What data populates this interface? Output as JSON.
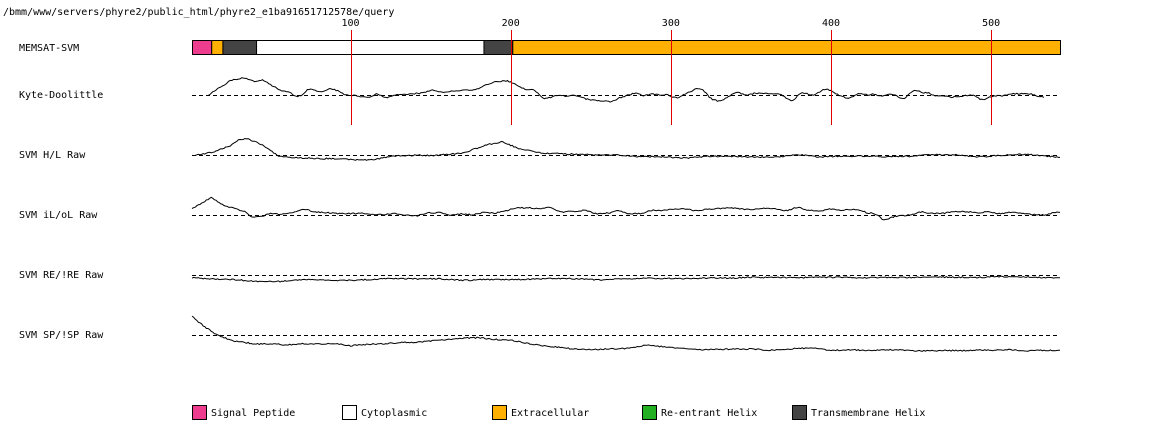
{
  "chart_data": {
    "type": "line",
    "title": "/bmm/www/servers/phyre2/public_html/phyre2_e1ba91651712578e/query",
    "x_range": [
      1,
      543
    ],
    "ruler_ticks": [
      100,
      200,
      300,
      400,
      500
    ],
    "topology": {
      "label": "MEMSAT-SVM",
      "segments": [
        {
          "type": "Signal Peptide",
          "start": 1,
          "end": 13
        },
        {
          "type": "Extracellular",
          "start": 13,
          "end": 20
        },
        {
          "type": "Transmembrane Helix",
          "start": 20,
          "end": 41
        },
        {
          "type": "Cytoplasmic",
          "start": 41,
          "end": 183
        },
        {
          "type": "Transmembrane Helix",
          "start": 183,
          "end": 201
        },
        {
          "type": "Extracellular",
          "start": 201,
          "end": 543
        }
      ]
    },
    "tracks": [
      {
        "name": "Kyte-Doolittle",
        "x_start": 11,
        "x_end": 533,
        "features": [
          {
            "x": 11,
            "y": 0.2
          },
          {
            "x": 20,
            "y": 0.8
          },
          {
            "x": 30,
            "y": 1.4
          },
          {
            "x": 37,
            "y": 1.6
          },
          {
            "x": 45,
            "y": 1.2
          },
          {
            "x": 55,
            "y": 0.5
          },
          {
            "x": 70,
            "y": 0.2
          },
          {
            "x": 80,
            "y": 0.6
          },
          {
            "x": 92,
            "y": 0.3
          },
          {
            "x": 100,
            "y": -0.2
          },
          {
            "x": 112,
            "y": -0.4
          },
          {
            "x": 125,
            "y": 0.1
          },
          {
            "x": 140,
            "y": 0.3
          },
          {
            "x": 160,
            "y": 0.5
          },
          {
            "x": 175,
            "y": 0.5
          },
          {
            "x": 190,
            "y": 1.2
          },
          {
            "x": 198,
            "y": 1.1
          },
          {
            "x": 210,
            "y": 0.2
          },
          {
            "x": 225,
            "y": -0.1
          },
          {
            "x": 240,
            "y": 0.2
          },
          {
            "x": 255,
            "y": -0.5
          },
          {
            "x": 270,
            "y": -0.3
          },
          {
            "x": 285,
            "y": 0.4
          },
          {
            "x": 300,
            "y": -0.3
          },
          {
            "x": 315,
            "y": 0.5
          },
          {
            "x": 330,
            "y": -0.4
          },
          {
            "x": 345,
            "y": 0.3
          },
          {
            "x": 360,
            "y": 0.0
          },
          {
            "x": 375,
            "y": -0.2
          },
          {
            "x": 390,
            "y": 0.1
          },
          {
            "x": 400,
            "y": 0.4
          },
          {
            "x": 415,
            "y": -0.3
          },
          {
            "x": 428,
            "y": 0.3
          },
          {
            "x": 445,
            "y": -0.1
          },
          {
            "x": 460,
            "y": 0.3
          },
          {
            "x": 475,
            "y": -0.2
          },
          {
            "x": 490,
            "y": 0.0
          },
          {
            "x": 500,
            "y": -0.4
          },
          {
            "x": 512,
            "y": 0.2
          },
          {
            "x": 525,
            "y": 0.3
          },
          {
            "x": 533,
            "y": -0.2
          }
        ],
        "amp": 10,
        "noise_amp": 4,
        "wl": 7,
        "seed": 3
      },
      {
        "name": "SVM H/L Raw",
        "x_start": 1,
        "x_end": 543,
        "features": [
          {
            "x": 1,
            "y": 0.0
          },
          {
            "x": 15,
            "y": 0.2
          },
          {
            "x": 25,
            "y": 0.9
          },
          {
            "x": 30,
            "y": 1.5
          },
          {
            "x": 35,
            "y": 1.6
          },
          {
            "x": 45,
            "y": 0.9
          },
          {
            "x": 55,
            "y": 0.0
          },
          {
            "x": 70,
            "y": -0.4
          },
          {
            "x": 90,
            "y": -0.3
          },
          {
            "x": 110,
            "y": -0.4
          },
          {
            "x": 130,
            "y": -0.2
          },
          {
            "x": 150,
            "y": -0.1
          },
          {
            "x": 170,
            "y": 0.2
          },
          {
            "x": 185,
            "y": 1.0
          },
          {
            "x": 195,
            "y": 1.3
          },
          {
            "x": 205,
            "y": 0.6
          },
          {
            "x": 220,
            "y": 0.1
          },
          {
            "x": 240,
            "y": 0.1
          },
          {
            "x": 270,
            "y": -0.1
          },
          {
            "x": 300,
            "y": -0.2
          },
          {
            "x": 340,
            "y": -0.2
          },
          {
            "x": 380,
            "y": -0.1
          },
          {
            "x": 420,
            "y": -0.1
          },
          {
            "x": 460,
            "y": 0.0
          },
          {
            "x": 500,
            "y": -0.1
          },
          {
            "x": 530,
            "y": 0.0
          },
          {
            "x": 543,
            "y": -0.2
          }
        ],
        "amp": 10,
        "noise_amp": 1.2,
        "wl": 14,
        "seed": 7
      },
      {
        "name": "SVM iL/oL Raw",
        "x_start": 1,
        "x_end": 543,
        "features": [
          {
            "x": 1,
            "y": 1.2
          },
          {
            "x": 6,
            "y": 2.0
          },
          {
            "x": 13,
            "y": 3.0
          },
          {
            "x": 20,
            "y": 2.0
          },
          {
            "x": 28,
            "y": 1.0
          },
          {
            "x": 35,
            "y": 0.2
          },
          {
            "x": 38,
            "y": -0.5
          },
          {
            "x": 42,
            "y": -0.1
          },
          {
            "x": 55,
            "y": 0.3
          },
          {
            "x": 70,
            "y": 0.8
          },
          {
            "x": 85,
            "y": 0.5
          },
          {
            "x": 100,
            "y": 0.2
          },
          {
            "x": 120,
            "y": 0.1
          },
          {
            "x": 140,
            "y": 0.1
          },
          {
            "x": 160,
            "y": 0.3
          },
          {
            "x": 180,
            "y": 0.3
          },
          {
            "x": 195,
            "y": 0.8
          },
          {
            "x": 210,
            "y": 1.0
          },
          {
            "x": 225,
            "y": 0.9
          },
          {
            "x": 245,
            "y": 0.6
          },
          {
            "x": 260,
            "y": 0.5
          },
          {
            "x": 280,
            "y": 0.4
          },
          {
            "x": 300,
            "y": 0.7
          },
          {
            "x": 320,
            "y": 1.0
          },
          {
            "x": 340,
            "y": 1.1
          },
          {
            "x": 360,
            "y": 1.0
          },
          {
            "x": 380,
            "y": 1.1
          },
          {
            "x": 400,
            "y": 0.9
          },
          {
            "x": 420,
            "y": 0.8
          },
          {
            "x": 432,
            "y": -0.7
          },
          {
            "x": 440,
            "y": 0.0
          },
          {
            "x": 455,
            "y": 0.5
          },
          {
            "x": 470,
            "y": 0.4
          },
          {
            "x": 490,
            "y": 0.6
          },
          {
            "x": 510,
            "y": 0.4
          },
          {
            "x": 530,
            "y": 0.3
          },
          {
            "x": 543,
            "y": 0.3
          }
        ],
        "amp": 6,
        "noise_amp": 2,
        "wl": 7,
        "seed": 11
      },
      {
        "name": "SVM RE/!RE Raw",
        "x_start": 1,
        "x_end": 543,
        "features": [
          {
            "x": 1,
            "y": -0.6
          },
          {
            "x": 20,
            "y": -1.0
          },
          {
            "x": 40,
            "y": -1.6
          },
          {
            "x": 55,
            "y": -1.5
          },
          {
            "x": 75,
            "y": -1.2
          },
          {
            "x": 95,
            "y": -1.3
          },
          {
            "x": 115,
            "y": -1.0
          },
          {
            "x": 135,
            "y": -0.9
          },
          {
            "x": 155,
            "y": -1.0
          },
          {
            "x": 175,
            "y": -1.3
          },
          {
            "x": 200,
            "y": -1.1
          },
          {
            "x": 230,
            "y": -0.9
          },
          {
            "x": 260,
            "y": -1.1
          },
          {
            "x": 290,
            "y": -0.8
          },
          {
            "x": 320,
            "y": -0.8
          },
          {
            "x": 350,
            "y": -0.6
          },
          {
            "x": 380,
            "y": -0.6
          },
          {
            "x": 410,
            "y": -0.7
          },
          {
            "x": 440,
            "y": -0.7
          },
          {
            "x": 470,
            "y": -0.6
          },
          {
            "x": 500,
            "y": -0.5
          },
          {
            "x": 543,
            "y": -0.6
          }
        ],
        "amp": 4,
        "noise_amp": 0.5,
        "wl": 14,
        "seed": 19
      },
      {
        "name": "SVM SP/!SP Raw",
        "x_start": 1,
        "x_end": 543,
        "features": [
          {
            "x": 1,
            "y": 4.8
          },
          {
            "x": 4,
            "y": 3.6
          },
          {
            "x": 8,
            "y": 2.4
          },
          {
            "x": 15,
            "y": 0.4
          },
          {
            "x": 25,
            "y": -1.3
          },
          {
            "x": 40,
            "y": -2.3
          },
          {
            "x": 60,
            "y": -2.4
          },
          {
            "x": 80,
            "y": -2.1
          },
          {
            "x": 100,
            "y": -2.6
          },
          {
            "x": 120,
            "y": -2.1
          },
          {
            "x": 140,
            "y": -1.8
          },
          {
            "x": 160,
            "y": -1.1
          },
          {
            "x": 180,
            "y": -0.6
          },
          {
            "x": 200,
            "y": -1.3
          },
          {
            "x": 220,
            "y": -2.8
          },
          {
            "x": 240,
            "y": -3.6
          },
          {
            "x": 260,
            "y": -3.6
          },
          {
            "x": 275,
            "y": -3.2
          },
          {
            "x": 285,
            "y": -2.4
          },
          {
            "x": 300,
            "y": -3.2
          },
          {
            "x": 320,
            "y": -3.7
          },
          {
            "x": 340,
            "y": -3.4
          },
          {
            "x": 360,
            "y": -3.8
          },
          {
            "x": 380,
            "y": -3.3
          },
          {
            "x": 400,
            "y": -3.7
          },
          {
            "x": 430,
            "y": -3.8
          },
          {
            "x": 460,
            "y": -3.9
          },
          {
            "x": 490,
            "y": -3.8
          },
          {
            "x": 520,
            "y": -3.8
          },
          {
            "x": 543,
            "y": -3.8
          }
        ],
        "amp": 4,
        "noise_amp": 0.6,
        "wl": 10,
        "seed": 23
      }
    ],
    "legend": [
      {
        "label": "Signal Peptide",
        "color": "#ee3c8e"
      },
      {
        "label": "Cytoplasmic",
        "color": "#ffffff"
      },
      {
        "label": "Extracellular",
        "color": "#ffb000"
      },
      {
        "label": "Re-entrant Helix",
        "color": "#22b022"
      },
      {
        "label": "Transmembrane Helix",
        "color": "#444444"
      }
    ],
    "colors": {
      "ruler": "#e00000",
      "line": "#000000",
      "baseline": "#000000"
    }
  }
}
